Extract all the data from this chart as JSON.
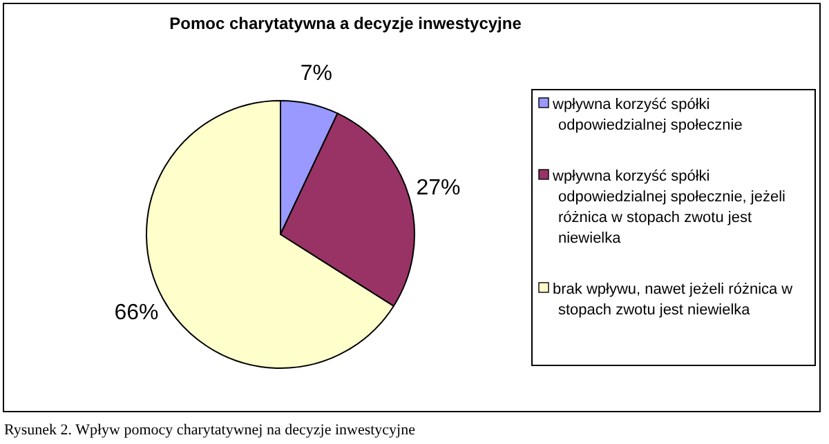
{
  "chart_data": {
    "type": "pie",
    "title": "Pomoc charytatywna a decyzje inwestycyjne",
    "categories": [
      "wpływna korzyść spółki odpowiedzialnej społecznie",
      "wpływna korzyść spółki odpowiedzialnej społecznie, jeżeli różnica w stopach zwotu jest niewielka",
      "brak wpływu, nawet jeżeli różnica w stopach zwotu jest niewielka"
    ],
    "values": [
      7,
      27,
      66
    ],
    "colors": [
      "#9999ff",
      "#993366",
      "#ffffcc"
    ],
    "value_labels": [
      "7%",
      "27%",
      "66%"
    ],
    "legend": "right",
    "annotations": [
      "Rysunek 2. Wpływ pomocy charytatywnej na decyzje inwestycyjne"
    ]
  }
}
